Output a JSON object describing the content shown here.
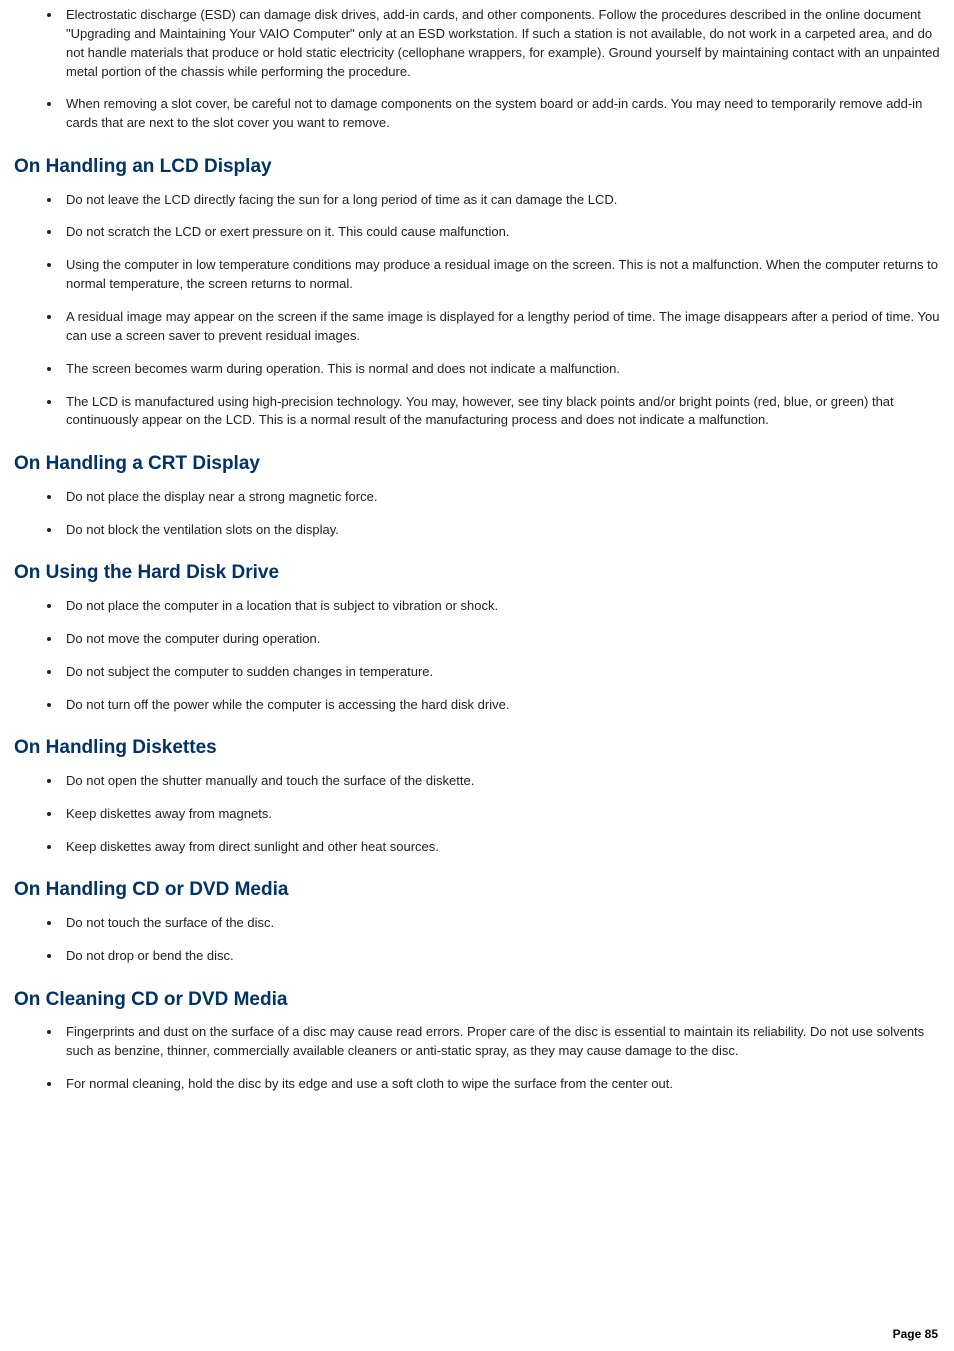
{
  "sections": [
    {
      "heading": null,
      "items": [
        "Electrostatic discharge (ESD) can damage disk drives, add-in cards, and other components. Follow the procedures described in the online document \"Upgrading and Maintaining Your VAIO Computer\" only at an ESD workstation. If such a station is not available, do not work in a carpeted area, and do not handle materials that produce or hold static electricity (cellophane wrappers, for example). Ground yourself by maintaining contact with an unpainted metal portion of the chassis while performing the procedure.",
        "When removing a slot cover, be careful not to damage components on the system board or add-in cards. You may need to temporarily remove add-in cards that are next to the slot cover you want to remove."
      ]
    },
    {
      "heading": "On Handling an LCD Display",
      "items": [
        "Do not leave the LCD directly facing the sun for a long period of time as it can damage the LCD.",
        "Do not scratch the LCD or exert pressure on it. This could cause malfunction.",
        "Using the computer in low temperature conditions may produce a residual image on the screen. This is not a malfunction. When the computer returns to normal temperature, the screen returns to normal.",
        "A residual image may appear on the screen if the same image is displayed for a lengthy period of time. The image disappears after a period of time. You can use a screen saver to prevent residual images.",
        "The screen becomes warm during operation. This is normal and does not indicate a malfunction.",
        "The LCD is manufactured using high-precision technology. You may, however, see tiny black points and/or bright points (red, blue, or green) that continuously appear on the LCD. This is a normal result of the manufacturing process and does not indicate a malfunction."
      ]
    },
    {
      "heading": "On Handling a CRT Display",
      "items": [
        "Do not place the display near a strong magnetic force.",
        "Do not block the ventilation slots on the display."
      ]
    },
    {
      "heading": "On Using the Hard Disk Drive",
      "items": [
        "Do not place the computer in a location that is subject to vibration or shock.",
        "Do not move the computer during operation.",
        "Do not subject the computer to sudden changes in temperature.",
        "Do not turn off the power while the computer is accessing the hard disk drive."
      ]
    },
    {
      "heading": "On Handling Diskettes",
      "items": [
        "Do not open the shutter manually and touch the surface of the diskette.",
        "Keep diskettes away from magnets.",
        "Keep diskettes away from direct sunlight and other heat sources."
      ]
    },
    {
      "heading": "On Handling CD or DVD Media",
      "items": [
        "Do not touch the surface of the disc.",
        "Do not drop or bend the disc."
      ]
    },
    {
      "heading": "On Cleaning CD or DVD Media",
      "items": [
        "Fingerprints and dust on the surface of a disc may cause read errors. Proper care of the disc is essential to maintain its reliability. Do not use solvents such as benzine, thinner, commercially available cleaners or anti-static spray, as they may cause damage to the disc.",
        "For normal cleaning, hold the disc by its edge and use a soft cloth to wipe the surface from the center out."
      ]
    }
  ],
  "pageLabel": "Page 85",
  "style": {
    "headingColor": "#003366",
    "bodyTextColor": "#222222",
    "bodyFontSize": 13,
    "headingFontSize": 19,
    "backgroundColor": "#ffffff"
  }
}
